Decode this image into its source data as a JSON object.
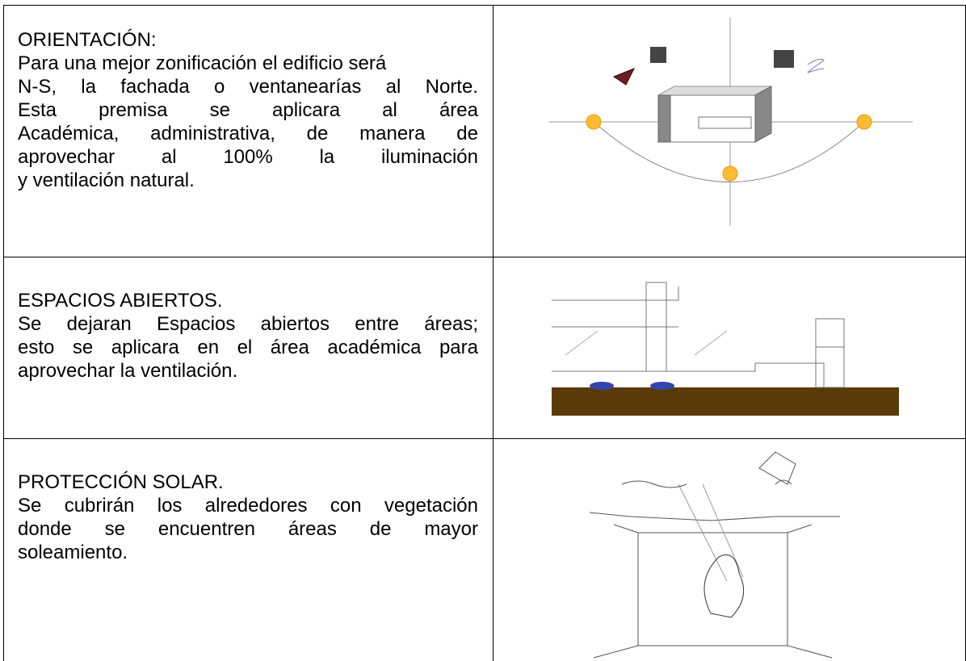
{
  "table": {
    "rows": [
      {
        "heading": "ORIENTACIÓN:",
        "lines": [
          "Para una mejor zonificación el edificio será",
          "N-S, la fachada o ventanearías al Norte.",
          "Esta premisa se aplicara al área",
          "Académica, administrativa, de manera de",
          "aprovechar al 100% la iluminación",
          "y ventilación natural."
        ]
      },
      {
        "heading": "ESPACIOS ABIERTOS.",
        "lines": [
          "Se dejaran Espacios abiertos entre áreas;",
          "esto se aplicara en el área académica para",
          "aprovechar la ventilación."
        ]
      },
      {
        "heading": "PROTECCIÓN SOLAR.",
        "lines": [
          "Se cubrirán los alrededores con vegetación",
          "donde se encuentren áreas de mayor",
          "soleamiento."
        ]
      }
    ]
  }
}
